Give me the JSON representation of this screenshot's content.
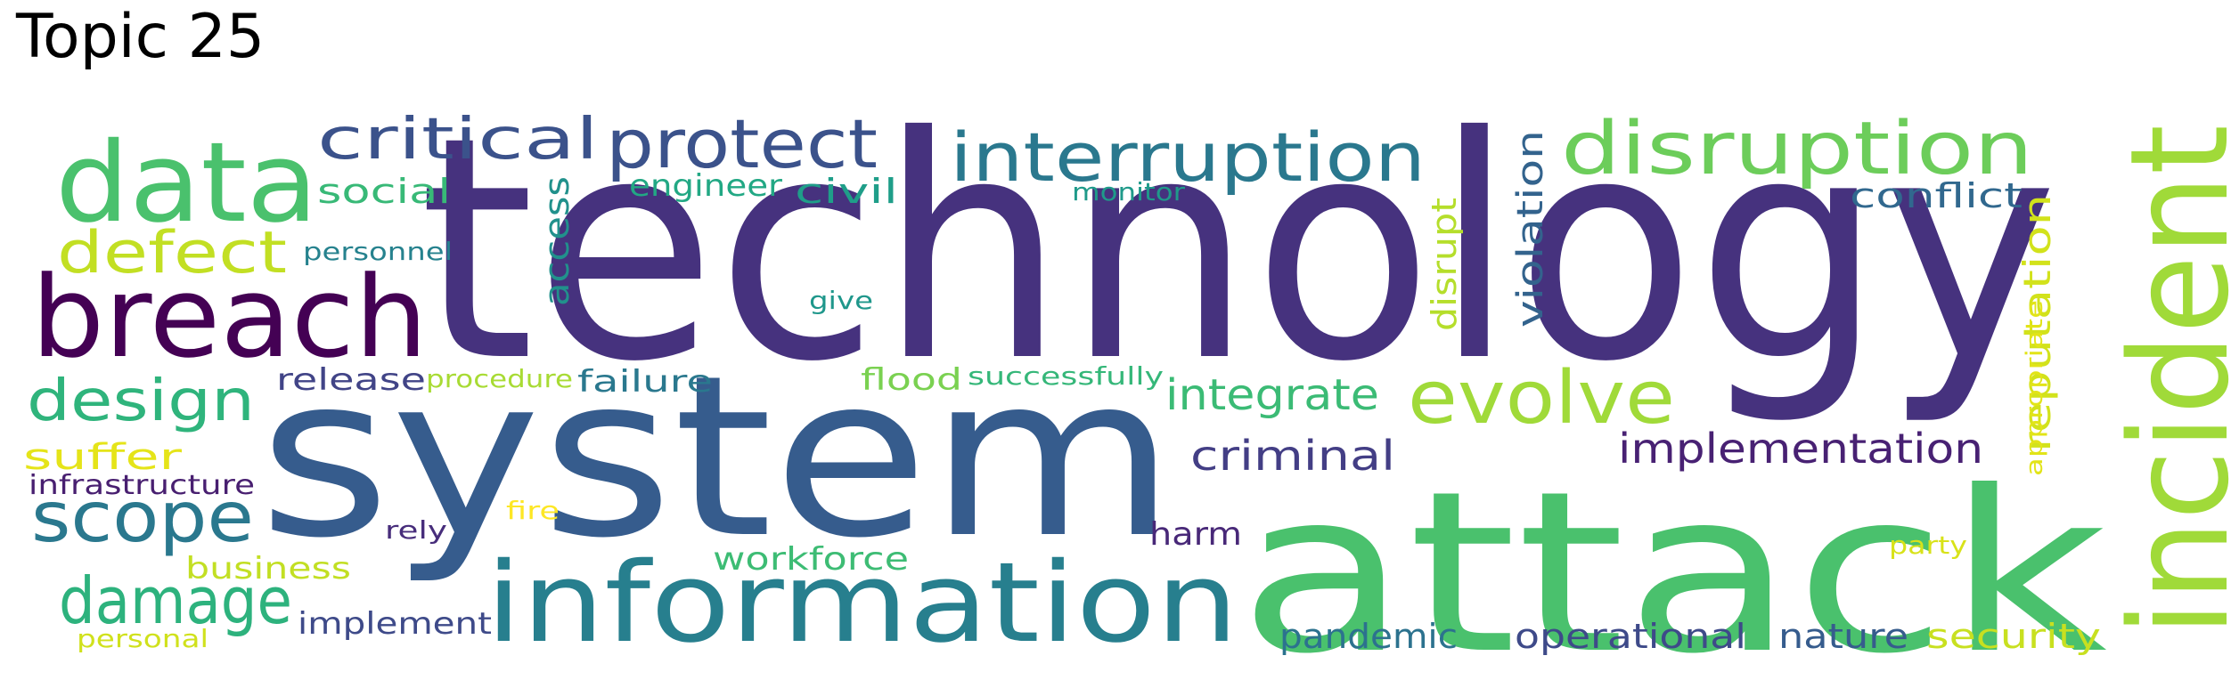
{
  "title": "Topic 25",
  "words": [
    {
      "text": "technology",
      "color": "#46327e"
    },
    {
      "text": "system",
      "color": "#365c8d"
    },
    {
      "text": "attack",
      "color": "#4ac16d"
    },
    {
      "text": "information",
      "color": "#277f8e"
    },
    {
      "text": "incident",
      "color": "#a0da39"
    },
    {
      "text": "breach",
      "color": "#440154"
    },
    {
      "text": "data",
      "color": "#4ac16d"
    },
    {
      "text": "disruption",
      "color": "#6ccd5a"
    },
    {
      "text": "interruption",
      "color": "#2a788e"
    },
    {
      "text": "protect",
      "color": "#3b528b"
    },
    {
      "text": "evolve",
      "color": "#a0da39"
    },
    {
      "text": "critical",
      "color": "#3b528b"
    },
    {
      "text": "scope",
      "color": "#2a788e"
    },
    {
      "text": "damage",
      "color": "#2db27d"
    },
    {
      "text": "design",
      "color": "#2fb47c"
    },
    {
      "text": "defect",
      "color": "#c2df23"
    },
    {
      "text": "integrate",
      "color": "#3bbb75"
    },
    {
      "text": "implementation",
      "color": "#482173"
    },
    {
      "text": "criminal",
      "color": "#433e85"
    },
    {
      "text": "reputation",
      "color": "#d2e21b"
    },
    {
      "text": "violation",
      "color": "#33638d"
    },
    {
      "text": "disrupt",
      "color": "#b5de2b"
    },
    {
      "text": "access",
      "color": "#21918c"
    },
    {
      "text": "conflict",
      "color": "#31688e"
    },
    {
      "text": "operational",
      "color": "#3e4a89"
    },
    {
      "text": "nature",
      "color": "#365c8d"
    },
    {
      "text": "security",
      "color": "#c8e020"
    },
    {
      "text": "pandemic",
      "color": "#2c728e"
    },
    {
      "text": "workforce",
      "color": "#3dbc74"
    },
    {
      "text": "harm",
      "color": "#482878"
    },
    {
      "text": "suffer",
      "color": "#e5e419"
    },
    {
      "text": "social",
      "color": "#38b977"
    },
    {
      "text": "civil",
      "color": "#1f9e89"
    },
    {
      "text": "engineer",
      "color": "#22a884"
    },
    {
      "text": "release",
      "color": "#414487"
    },
    {
      "text": "failure",
      "color": "#2a788e"
    },
    {
      "text": "flood",
      "color": "#7ad151"
    },
    {
      "text": "implement",
      "color": "#3e4a89"
    },
    {
      "text": "business",
      "color": "#c2df23"
    },
    {
      "text": "infrastructure",
      "color": "#481f70"
    },
    {
      "text": "appropriate",
      "color": "#e2e418"
    },
    {
      "text": "personnel",
      "color": "#26828e"
    },
    {
      "text": "monitor",
      "color": "#1f9a8a"
    },
    {
      "text": "give",
      "color": "#1f978b"
    },
    {
      "text": "procedure",
      "color": "#a8db34"
    },
    {
      "text": "successfully",
      "color": "#35b779"
    },
    {
      "text": "party",
      "color": "#d8e219"
    },
    {
      "text": "rely",
      "color": "#472d7b"
    },
    {
      "text": "fire",
      "color": "#fde725"
    },
    {
      "text": "personal",
      "color": "#d0e11c"
    }
  ]
}
